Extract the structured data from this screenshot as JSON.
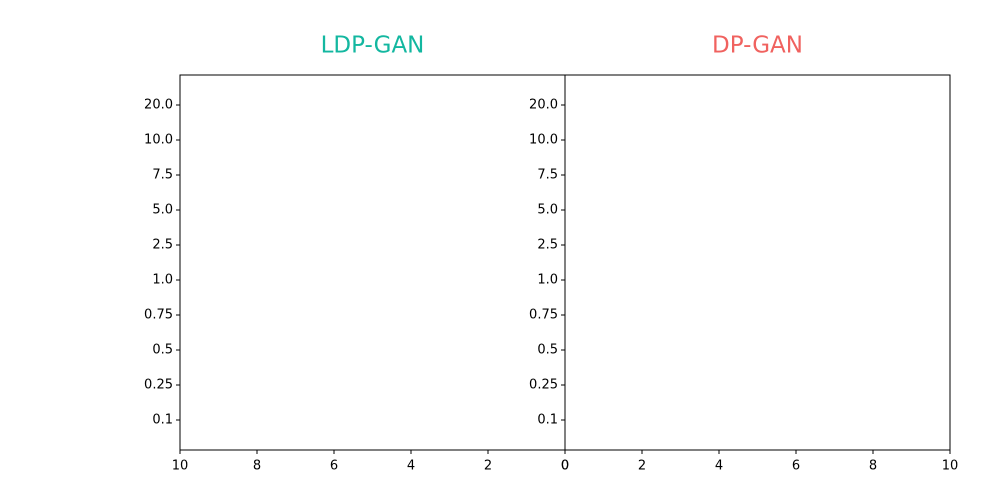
{
  "chart_data": [
    {
      "type": "barh",
      "title": "LDP-GAN",
      "title_color": "#13b7a0",
      "categories": [
        "0.1",
        "0.25",
        "0.5",
        "0.75",
        "1.0",
        "2.5",
        "5.0",
        "7.5",
        "10.0",
        "20.0"
      ],
      "xlim": [
        10,
        0
      ],
      "xticks": [
        10,
        8,
        6,
        4,
        2,
        0
      ]
    },
    {
      "type": "barh",
      "title": "DP-GAN",
      "title_color": "#f0625f",
      "categories": [
        "0.1",
        "0.25",
        "0.5",
        "0.75",
        "1.0",
        "2.5",
        "5.0",
        "7.5",
        "10.0",
        "20.0"
      ],
      "xlim": [
        0,
        10
      ],
      "xticks": [
        0,
        2,
        4,
        6,
        8,
        10
      ]
    }
  ]
}
